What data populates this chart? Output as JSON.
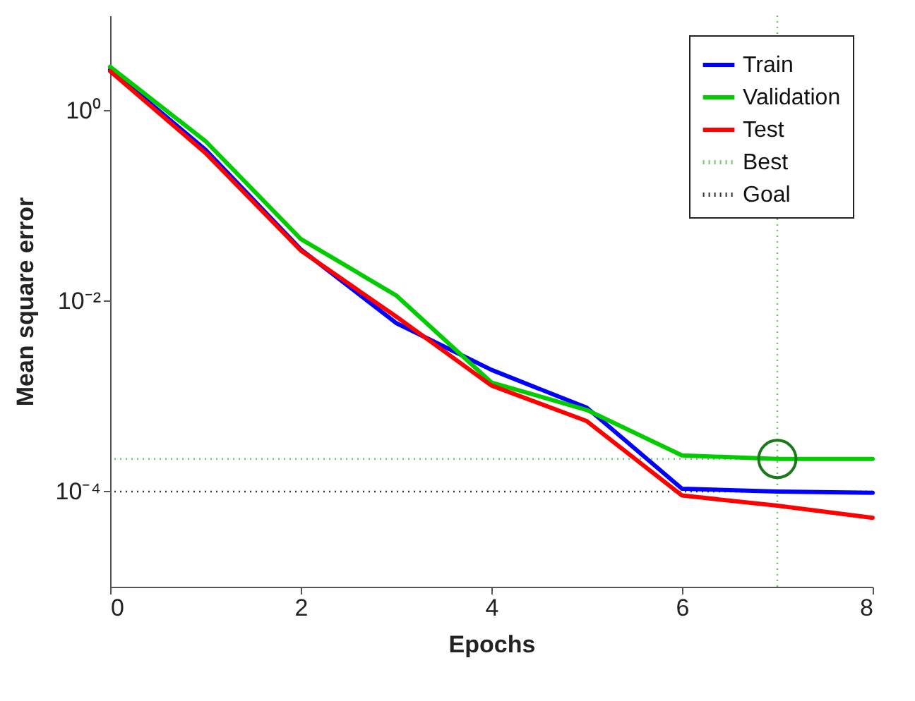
{
  "chart_data": {
    "type": "line",
    "xlabel": "Epochs",
    "ylabel": "Mean square error",
    "log": "y",
    "grid": false,
    "legend": "top right",
    "marker": "none",
    "line_style": "solid",
    "x": [
      0,
      1,
      2,
      3,
      4,
      5,
      6,
      7,
      8
    ],
    "xlim": [
      0,
      8
    ],
    "xticks": [
      0,
      2,
      4,
      6,
      8
    ],
    "ylim": [
      1e-05,
      10
    ],
    "yticks": [
      {
        "value": 0.0001,
        "label": "10⁻⁴"
      },
      {
        "value": 0.01,
        "label": "10⁻²"
      },
      {
        "value": 1,
        "label": "10⁰"
      }
    ],
    "series": [
      {
        "name": "Train",
        "color": "#0000ff",
        "values": [
          2.7,
          0.39,
          0.035,
          0.0059,
          0.0019,
          0.00076,
          0.000107,
          0.0001,
          9.7e-05
        ]
      },
      {
        "name": "Validation",
        "color": "#00cc00",
        "values": [
          2.9,
          0.48,
          0.045,
          0.0115,
          0.0014,
          0.00072,
          0.00024,
          0.00022,
          0.00022
        ]
      },
      {
        "name": "Test",
        "color": "#ff0000",
        "values": [
          2.6,
          0.36,
          0.034,
          0.0069,
          0.0013,
          0.00055,
          9.1e-05,
          7.1e-05,
          5.3e-05
        ]
      },
      {
        "type": "scatter",
        "marker": "circle",
        "color": "#1a7a1a",
        "x": [
          7
        ],
        "values": [
          0.00022
        ]
      }
    ],
    "ref_lines": [
      {
        "axis": "x",
        "value": 7,
        "label": "Best",
        "color": "#66cc66",
        "line_style": "dotted"
      },
      {
        "axis": "y",
        "value": 0.00022,
        "color": "#66cc66",
        "line_style": "dotted"
      },
      {
        "axis": "y",
        "value": 0.0001,
        "label": "Goal",
        "color": "#333333",
        "line_style": "dotted"
      }
    ]
  }
}
